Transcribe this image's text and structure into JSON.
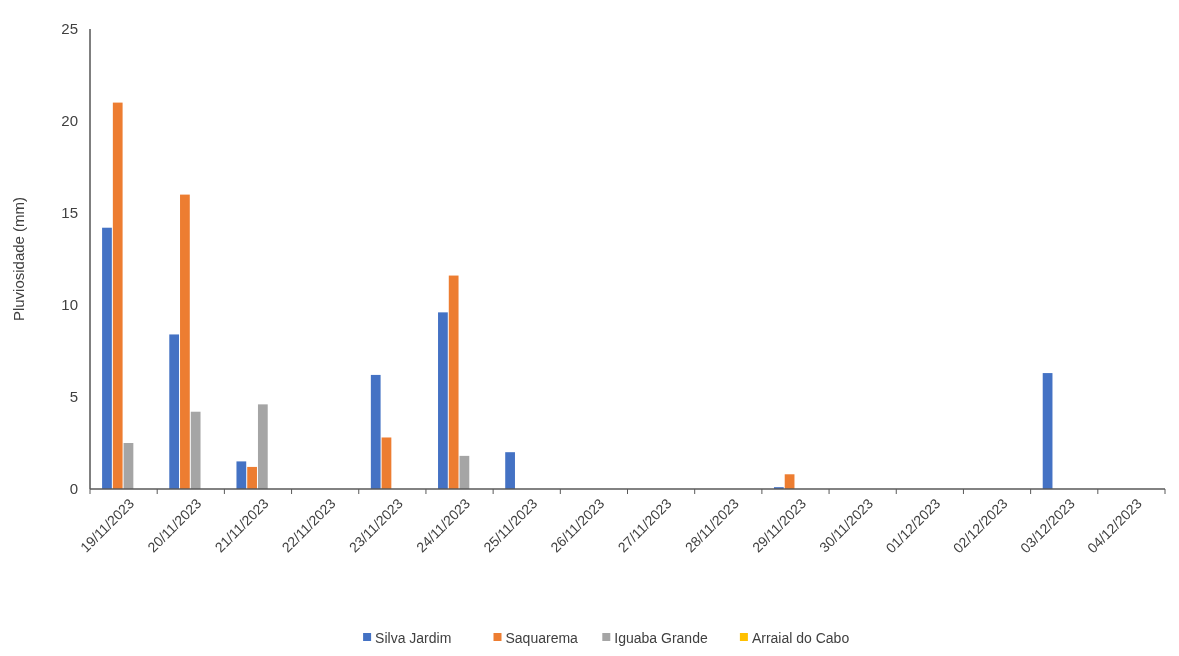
{
  "chart_data": {
    "type": "bar",
    "ylabel": "Pluviosidade (mm)",
    "categories": [
      "19/11/2023",
      "20/11/2023",
      "21/11/2023",
      "22/11/2023",
      "23/11/2023",
      "24/11/2023",
      "25/11/2023",
      "26/11/2023",
      "27/11/2023",
      "28/11/2023",
      "29/11/2023",
      "30/11/2023",
      "01/12/2023",
      "02/12/2023",
      "03/12/2023",
      "04/12/2023"
    ],
    "series": [
      {
        "name": "Silva Jardim",
        "color": "#4472c4",
        "values": [
          14.2,
          8.4,
          1.5,
          0,
          6.2,
          9.6,
          2.0,
          0,
          0,
          0,
          0.1,
          0,
          0,
          0,
          6.3,
          0
        ]
      },
      {
        "name": "Saquarema",
        "color": "#ed7d31",
        "values": [
          21.0,
          16.0,
          1.2,
          0,
          2.8,
          11.6,
          0,
          0,
          0,
          0,
          0.8,
          0,
          0,
          0,
          0,
          0
        ]
      },
      {
        "name": "Iguaba Grande",
        "color": "#a5a5a5",
        "values": [
          2.5,
          4.2,
          4.6,
          0,
          0,
          1.8,
          0,
          0,
          0,
          0,
          0,
          0,
          0,
          0,
          0,
          0
        ]
      },
      {
        "name": "Arraial do Cabo",
        "color": "#ffc000",
        "values": [
          0,
          0,
          0,
          0,
          0,
          0,
          0,
          0,
          0,
          0,
          0,
          0,
          0,
          0,
          0,
          0
        ]
      }
    ],
    "ylim": [
      0,
      25
    ],
    "yticks": [
      0,
      5,
      10,
      15,
      20,
      25
    ],
    "grid": false,
    "legend": "bottom"
  }
}
